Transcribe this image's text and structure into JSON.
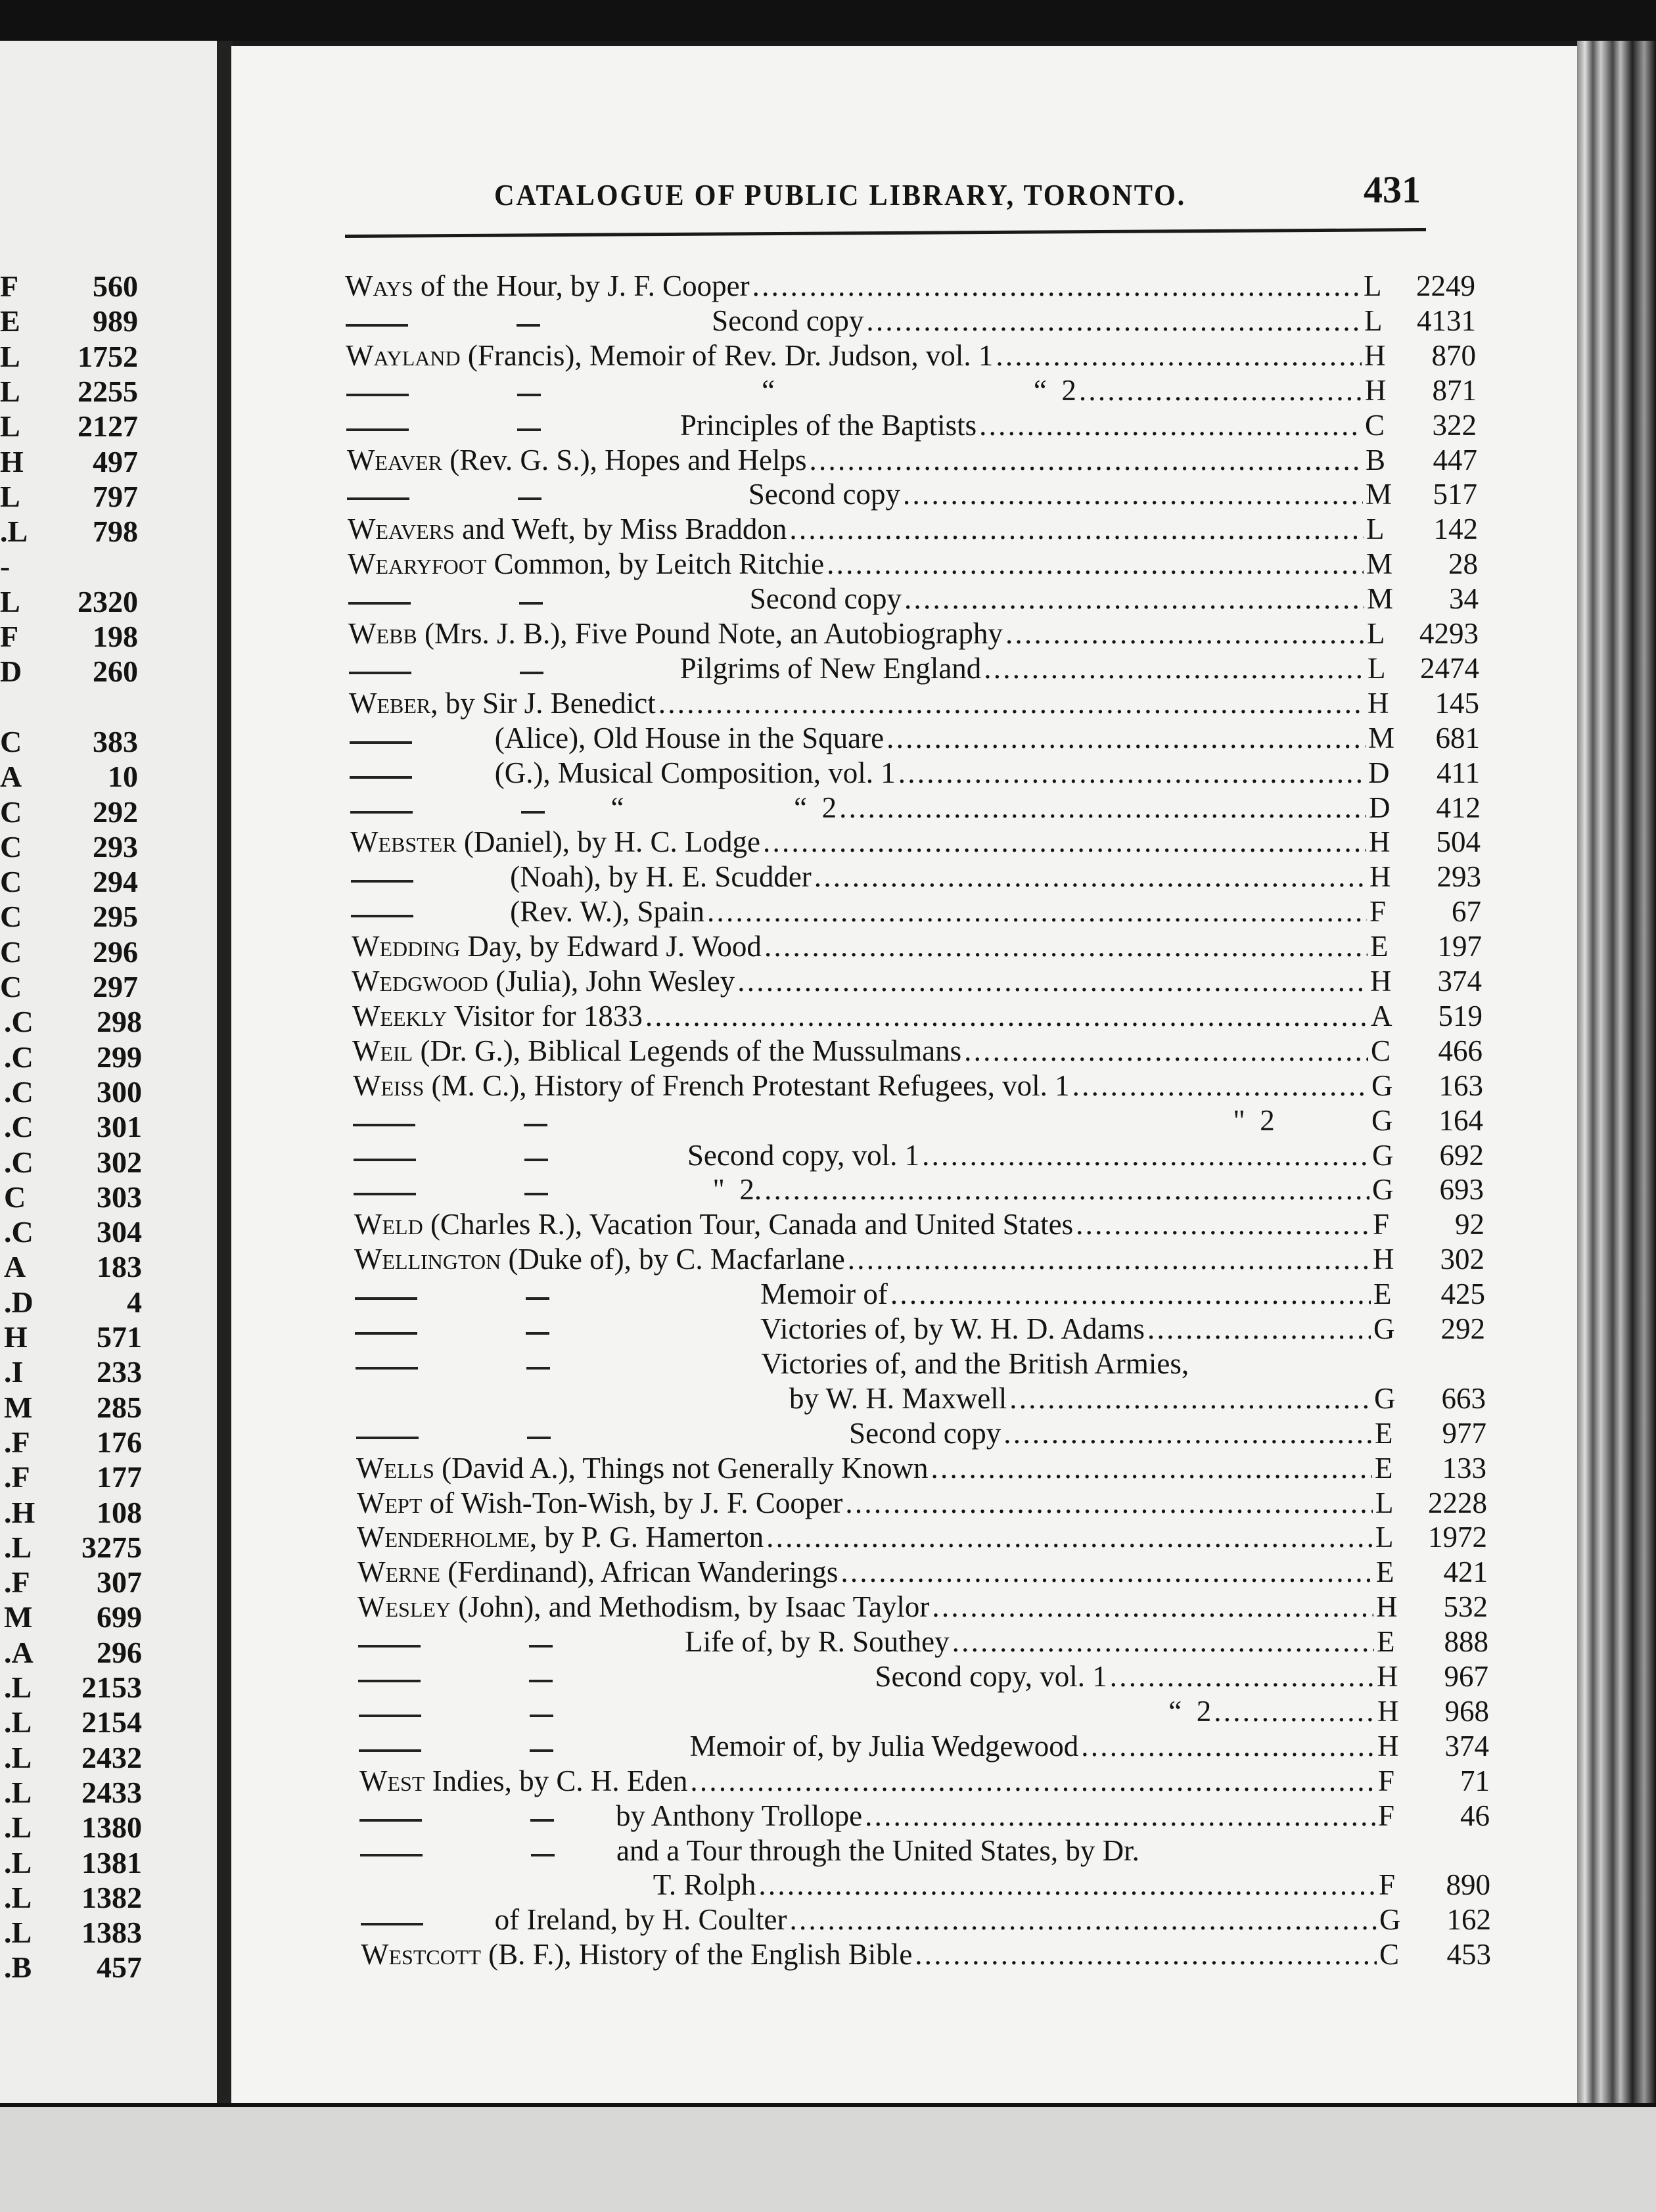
{
  "header": {
    "title": "CATALOGUE OF PUBLIC LIBRARY, TORONTO.",
    "page_number": "431"
  },
  "left_column": [
    {
      "cls": "F",
      "num": "560"
    },
    {
      "cls": "E",
      "num": "989"
    },
    {
      "cls": "L",
      "num": "1752"
    },
    {
      "cls": "L",
      "num": "2255"
    },
    {
      "cls": "L",
      "num": "2127"
    },
    {
      "cls": "H",
      "num": "497"
    },
    {
      "cls": "L",
      "num": "797"
    },
    {
      "cls": ".L",
      "num": "798"
    },
    {
      "cls": "-",
      "num": ""
    },
    {
      "cls": "L",
      "num": "2320"
    },
    {
      "cls": "F",
      "num": "198"
    },
    {
      "cls": "D",
      "num": "260"
    },
    {
      "cls": "",
      "num": ""
    },
    {
      "cls": "C",
      "num": "383"
    },
    {
      "cls": "A",
      "num": "10"
    },
    {
      "cls": "C",
      "num": "292"
    },
    {
      "cls": "C",
      "num": "293"
    },
    {
      "cls": "C",
      "num": "294"
    },
    {
      "cls": "C",
      "num": "295"
    },
    {
      "cls": "C",
      "num": "296"
    },
    {
      "cls": "C",
      "num": "297"
    },
    {
      "cls": ".C",
      "num": "298"
    },
    {
      "cls": ".C",
      "num": "299"
    },
    {
      "cls": ".C",
      "num": "300"
    },
    {
      "cls": ".C",
      "num": "301"
    },
    {
      "cls": ".C",
      "num": "302"
    },
    {
      "cls": "C",
      "num": "303"
    },
    {
      "cls": ".C",
      "num": "304"
    },
    {
      "cls": "A",
      "num": "183"
    },
    {
      "cls": ".D",
      "num": "4"
    },
    {
      "cls": "H",
      "num": "571"
    },
    {
      "cls": ".I",
      "num": "233"
    },
    {
      "cls": "M",
      "num": "285"
    },
    {
      "cls": ".F",
      "num": "176"
    },
    {
      "cls": ".F",
      "num": "177"
    },
    {
      "cls": ".H",
      "num": "108"
    },
    {
      "cls": ".L",
      "num": "3275"
    },
    {
      "cls": ".F",
      "num": "307"
    },
    {
      "cls": "M",
      "num": "699"
    },
    {
      "cls": ".A",
      "num": "296"
    },
    {
      "cls": ".L",
      "num": "2153"
    },
    {
      "cls": ".L",
      "num": "2154"
    },
    {
      "cls": ".L",
      "num": "2432"
    },
    {
      "cls": ".L",
      "num": "2433"
    },
    {
      "cls": ".L",
      "num": "1380"
    },
    {
      "cls": ".L",
      "num": "1381"
    },
    {
      "cls": ".L",
      "num": "1382"
    },
    {
      "cls": ".L",
      "num": "1383"
    },
    {
      "cls": ".B",
      "num": "457"
    }
  ],
  "entries": [
    {
      "head": "Ways",
      "text": " of the Hour, by J. F. Cooper",
      "cls": "L",
      "num": "2249"
    },
    {
      "dash": 2,
      "text": "Second copy",
      "cls": "L",
      "num": "4131"
    },
    {
      "head": "Wayland",
      "text": " (Francis), Memoir of Rev. Dr. Judson, vol. 1",
      "cls": "H",
      "num": "870"
    },
    {
      "dash": 2,
      "text": "“                                   “  2",
      "cls": "H",
      "num": "871"
    },
    {
      "dash": 2,
      "text": "Principles of the Baptists",
      "cls": "C",
      "num": "322"
    },
    {
      "head": "Weaver",
      "text": " (Rev. G. S.), Hopes and Helps",
      "cls": "B",
      "num": "447"
    },
    {
      "dash": 2,
      "text": "Second copy",
      "cls": "M",
      "num": "517"
    },
    {
      "head": "Weavers",
      "text": " and Weft, by Miss Braddon",
      "cls": "L",
      "num": "142"
    },
    {
      "head": "Wearyfoot",
      "text": " Common, by Leitch Ritchie",
      "cls": "M",
      "num": "28"
    },
    {
      "dash": 2,
      "text": "Second copy",
      "cls": "M",
      "num": "34"
    },
    {
      "head": "Webb",
      "text": " (Mrs. J. B.), Five Pound Note, an Autobiography",
      "cls": "L",
      "num": "4293"
    },
    {
      "dash": 2,
      "text": "Pilgrims of New England",
      "cls": "L",
      "num": "2474"
    },
    {
      "head": "Weber",
      "text": ", by Sir J. Benedict",
      "cls": "H",
      "num": "145"
    },
    {
      "dash": 1,
      "text": "(Alice), Old House in the Square",
      "cls": "M",
      "num": "681"
    },
    {
      "dash": 1,
      "text": "(G.), Musical Composition, vol. 1",
      "cls": "D",
      "num": "411"
    },
    {
      "dash": 2,
      "text": "“                       “  2",
      "cls": "D",
      "num": "412"
    },
    {
      "head": "Webster",
      "text": " (Daniel), by H. C. Lodge",
      "cls": "H",
      "num": "504"
    },
    {
      "dash": 1,
      "text": "(Noah), by H. E. Scudder",
      "cls": "H",
      "num": "293"
    },
    {
      "dash": 1,
      "text": "(Rev. W.), Spain",
      "cls": "F",
      "num": "67"
    },
    {
      "head": "Wedding",
      "text": " Day, by Edward J. Wood",
      "cls": "E",
      "num": "197"
    },
    {
      "head": "Wedgwood",
      "text": " (Julia), John Wesley",
      "cls": "H",
      "num": "374"
    },
    {
      "head": "Weekly",
      "text": " Visitor for 1833",
      "cls": "A",
      "num": "519"
    },
    {
      "head": "Weil",
      "text": " (Dr. G.), Biblical Legends of the Mussulmans",
      "cls": "C",
      "num": "466"
    },
    {
      "head": "Weiss",
      "text": " (M. C.), History of French Protestant Refugees, vol. 1",
      "cls": "G",
      "num": "163"
    },
    {
      "dash": 2,
      "text": "\"  2",
      "cls": "G",
      "num": "164"
    },
    {
      "dash": 2,
      "text": "Second copy, vol. 1",
      "cls": "G",
      "num": "692"
    },
    {
      "dash": 2,
      "text": "\"  2.",
      "cls": "G",
      "num": "693"
    },
    {
      "head": "Weld",
      "text": " (Charles R.), Vacation Tour, Canada and United States",
      "cls": "F",
      "num": "92"
    },
    {
      "head": "Wellington",
      "text": " (Duke of), by C. Macfarlane",
      "cls": "H",
      "num": "302"
    },
    {
      "dash": 2,
      "text": "Memoir of",
      "cls": "E",
      "num": "425"
    },
    {
      "dash": 2,
      "text": "Victories of, by W. H. D. Adams",
      "cls": "G",
      "num": "292"
    },
    {
      "dash": 2,
      "text": "Victories of, and the British Armies,",
      "cls": "",
      "num": ""
    },
    {
      "text": "by W. H. Maxwell",
      "cls": "G",
      "num": "663"
    },
    {
      "dash": 2,
      "text": "Second copy",
      "cls": "E",
      "num": "977"
    },
    {
      "head": "Wells",
      "text": " (David A.), Things not Generally Known",
      "cls": "E",
      "num": "133"
    },
    {
      "head": "Wept",
      "text": " of Wish-Ton-Wish, by J. F. Cooper",
      "cls": "L",
      "num": "2228"
    },
    {
      "head": "Wenderholme",
      "text": ", by P. G. Hamerton",
      "cls": "L",
      "num": "1972"
    },
    {
      "head": "Werne",
      "text": " (Ferdinand), African Wanderings",
      "cls": "E",
      "num": "421"
    },
    {
      "head": "Wesley",
      "text": " (John), and Methodism, by Isaac Taylor",
      "cls": "H",
      "num": "532"
    },
    {
      "dash": 2,
      "text": "Life of, by R. Southey",
      "cls": "E",
      "num": "888"
    },
    {
      "dash": 2,
      "text": "Second copy, vol. 1",
      "cls": "H",
      "num": "967"
    },
    {
      "dash": 2,
      "text": "“  2",
      "cls": "H",
      "num": "968"
    },
    {
      "dash": 2,
      "text": "Memoir of, by Julia Wedgewood",
      "cls": "H",
      "num": "374"
    },
    {
      "head": "West",
      "text": " Indies, by C. H. Eden",
      "cls": "F",
      "num": "71"
    },
    {
      "dash": 2,
      "text": "by Anthony Trollope",
      "cls": "F",
      "num": "46"
    },
    {
      "dash": 2,
      "text": "and a Tour through the United States, by Dr.",
      "cls": "",
      "num": ""
    },
    {
      "text": "T. Rolph",
      "cls": "F",
      "num": "890"
    },
    {
      "dash": 1,
      "text": "of Ireland, by H. Coulter",
      "cls": "G",
      "num": "162"
    },
    {
      "head": "Westcott",
      "text": " (B. F.), History of the English Bible",
      "cls": "C",
      "num": "453"
    }
  ]
}
